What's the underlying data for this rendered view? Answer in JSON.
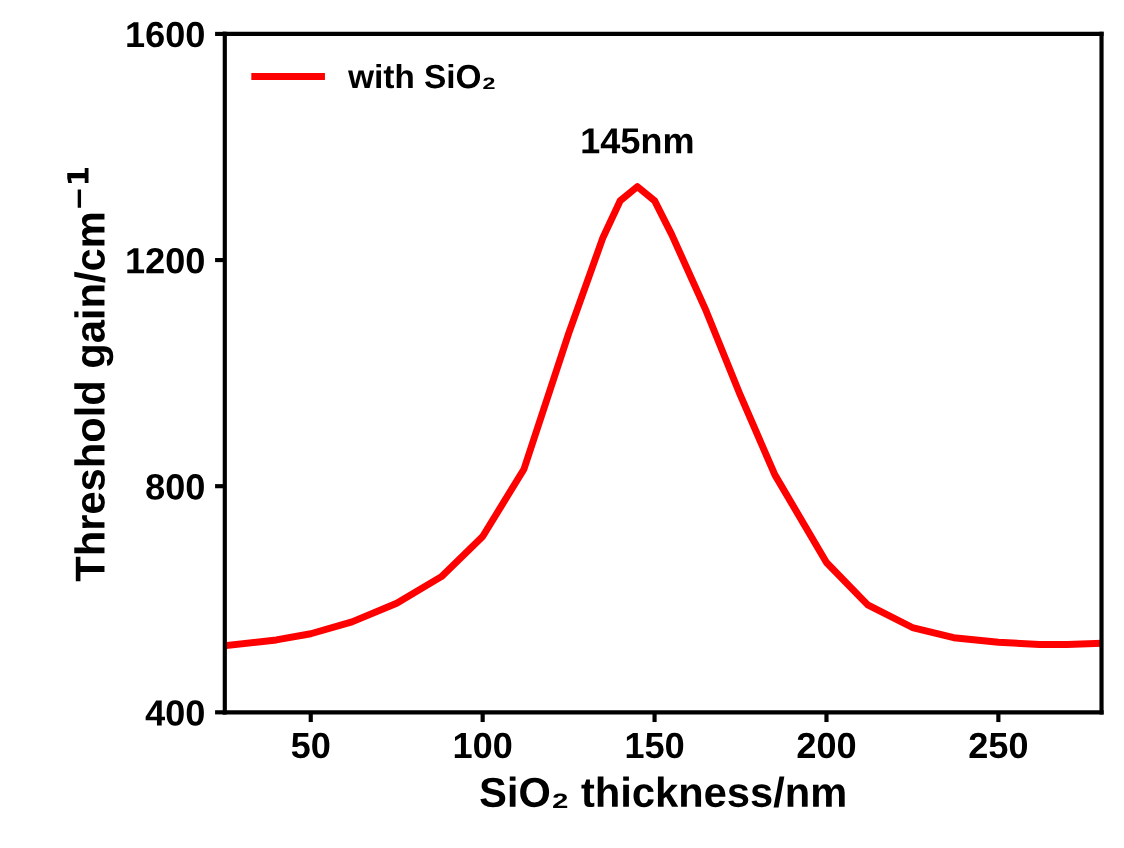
{
  "chart_data": {
    "type": "line",
    "x": [
      25,
      40,
      50,
      62,
      75,
      88,
      100,
      112,
      125,
      135,
      140,
      145,
      150,
      155,
      165,
      175,
      185,
      200,
      212,
      225,
      237,
      250,
      262,
      270,
      280
    ],
    "series": [
      {
        "name": "with SiO₂",
        "color": "#ff0000",
        "values": [
          518,
          528,
          539,
          560,
          593,
          640,
          711,
          830,
          1070,
          1240,
          1305,
          1330,
          1305,
          1245,
          1110,
          960,
          820,
          665,
          590,
          550,
          532,
          524,
          520,
          520,
          522
        ]
      }
    ],
    "xlabel": "SiO₂ thickness/nm",
    "ylabel": "Threshold gain/cm$^{−1}$",
    "annotations": [
      {
        "text": "145nm",
        "x": 145,
        "y": 1330
      }
    ],
    "xlim": [
      25,
      280
    ],
    "xticks": [
      50,
      100,
      150,
      200,
      250
    ],
    "ylim": [
      400,
      1600
    ],
    "yticks": [
      400,
      800,
      1200,
      1600
    ],
    "legend": "top left",
    "grid": false,
    "marker": "none",
    "line_style": "solid"
  }
}
